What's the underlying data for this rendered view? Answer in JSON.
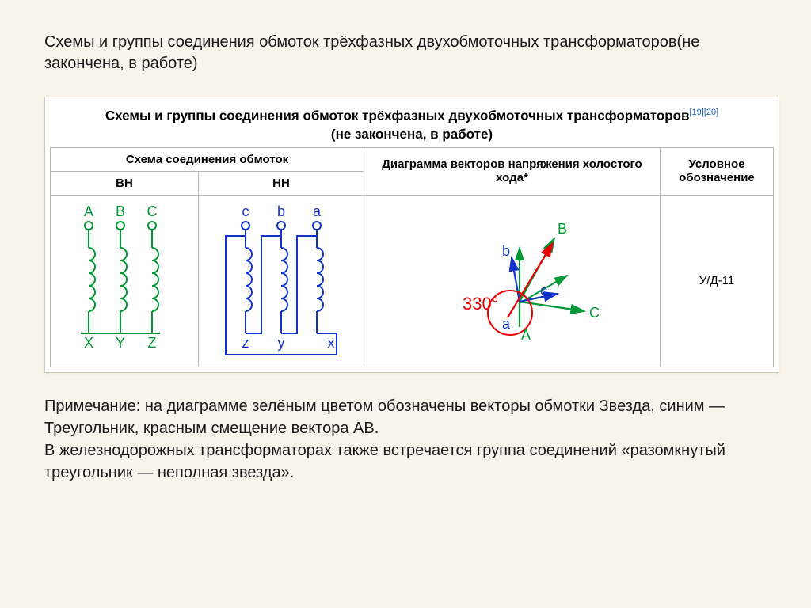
{
  "intro_title": "Схемы и группы соединения обмоток трёхфазных двухобмоточных трансформаторов(не закончена, в работе)",
  "figure": {
    "title_line1": "Схемы и группы соединения обмоток трёхфазных двухобмоточных трансформаторов",
    "title_line2": "(не закончена, в работе)",
    "refs": "[19][20]",
    "headers": {
      "scheme": "Схема соединения обмоток",
      "vector": "Диаграмма векторов напряжения холостого хода*",
      "symbol": "Условное обозначение",
      "bh": "ВН",
      "hh": "НН"
    },
    "symbol_value": "У/Д-11",
    "colors": {
      "hv": "#009933",
      "lv": "#1133cc",
      "shift": "#e60000",
      "border": "#1a1a1a"
    },
    "hv": {
      "top_labels": [
        "A",
        "B",
        "C"
      ],
      "bottom_labels": [
        "X",
        "Y",
        "Z"
      ]
    },
    "lv": {
      "top_labels": [
        "c",
        "b",
        "a"
      ],
      "bottom_labels": [
        "z",
        "y",
        "x"
      ]
    },
    "vector": {
      "angle_label": "330°",
      "hv_labels": [
        "A",
        "B",
        "C"
      ],
      "lv_labels": [
        "a",
        "b",
        "c"
      ]
    }
  },
  "note_text": "Примечание: на диаграмме зелёным цветом обозначены векторы обмотки Звезда, синим — Треугольник, красным смещение вектора AB.\nВ железнодорожных трансформаторах также встречается группа соединений «разомкнутый треугольник — неполная звезда»."
}
